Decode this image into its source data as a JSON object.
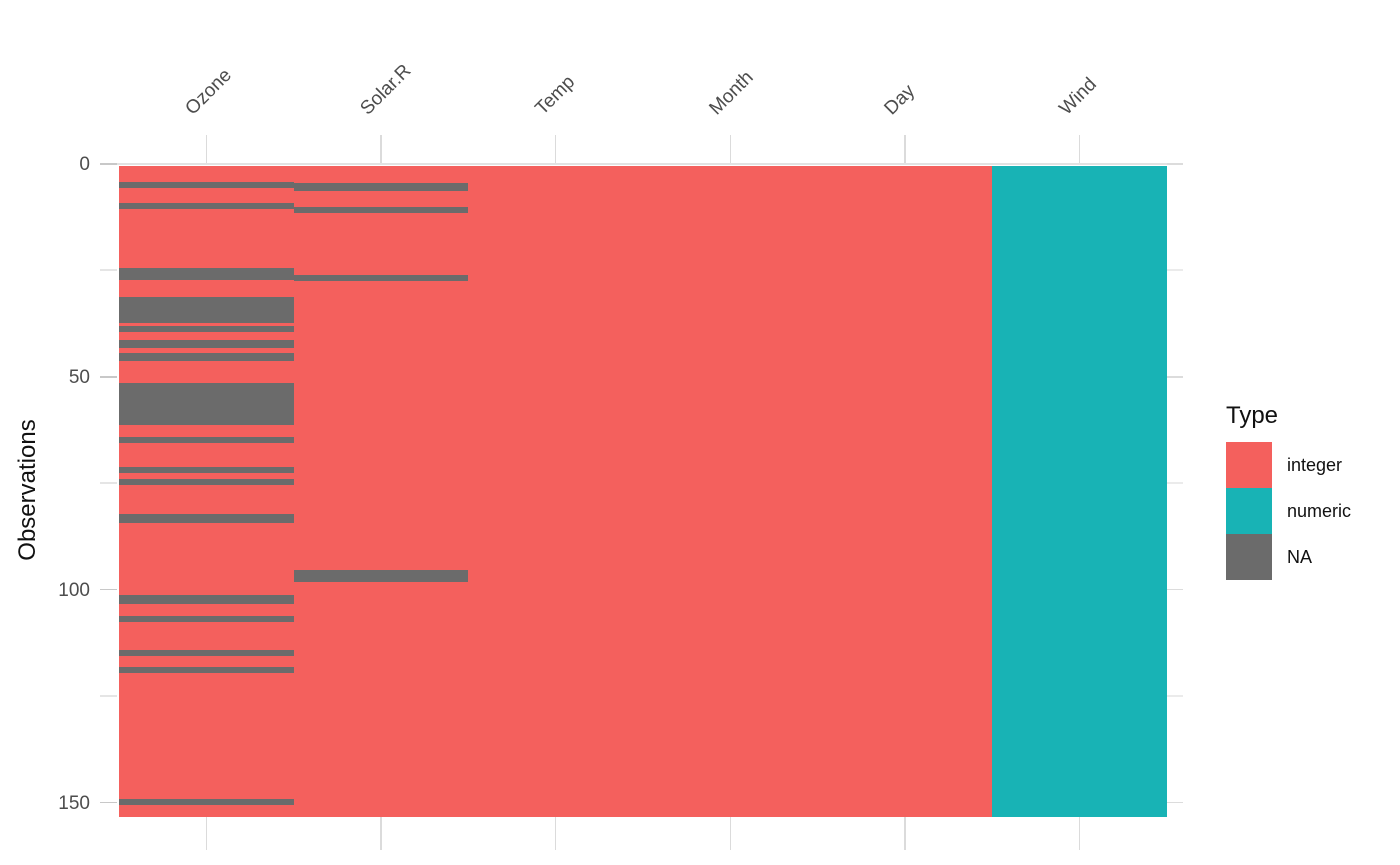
{
  "figure": {
    "background": "#ffffff"
  },
  "axes": {
    "y_title": "Observations",
    "y_major_values": [
      0,
      50,
      100,
      150
    ],
    "y_minor_values": [
      25,
      75,
      125
    ],
    "x_columns": [
      "Ozone",
      "Solar.R",
      "Temp",
      "Month",
      "Day",
      "Wind"
    ]
  },
  "legend": {
    "title": "Type",
    "items": [
      {
        "label": "integer",
        "color": "#F4605D"
      },
      {
        "label": "numeric",
        "color": "#18B3B5"
      },
      {
        "label": "NA",
        "color": "#6B6B6B"
      }
    ]
  },
  "chart_data": {
    "type": "heatmap",
    "title": "",
    "ylabel": "Observations",
    "y_ticks": [
      0,
      50,
      100,
      150
    ],
    "n_observations": 153,
    "legend_title": "Type",
    "legend_position": "right",
    "grid": "minimal-light-gray",
    "type_colors": {
      "integer": "#F4605D",
      "numeric": "#18B3B5",
      "NA": "#6B6B6B"
    },
    "columns": [
      {
        "name": "Ozone",
        "type": "integer",
        "na_rows": [
          5,
          10,
          25,
          26,
          27,
          32,
          33,
          34,
          35,
          36,
          37,
          39,
          42,
          43,
          45,
          46,
          52,
          53,
          54,
          55,
          56,
          57,
          58,
          59,
          60,
          61,
          65,
          72,
          75,
          83,
          84,
          102,
          103,
          107,
          115,
          119,
          150
        ]
      },
      {
        "name": "Solar.R",
        "type": "integer",
        "na_rows": [
          5,
          6,
          11,
          27,
          96,
          97,
          98
        ]
      },
      {
        "name": "Temp",
        "type": "integer",
        "na_rows": []
      },
      {
        "name": "Month",
        "type": "integer",
        "na_rows": []
      },
      {
        "name": "Day",
        "type": "integer",
        "na_rows": []
      },
      {
        "name": "Wind",
        "type": "numeric",
        "na_rows": []
      }
    ]
  }
}
